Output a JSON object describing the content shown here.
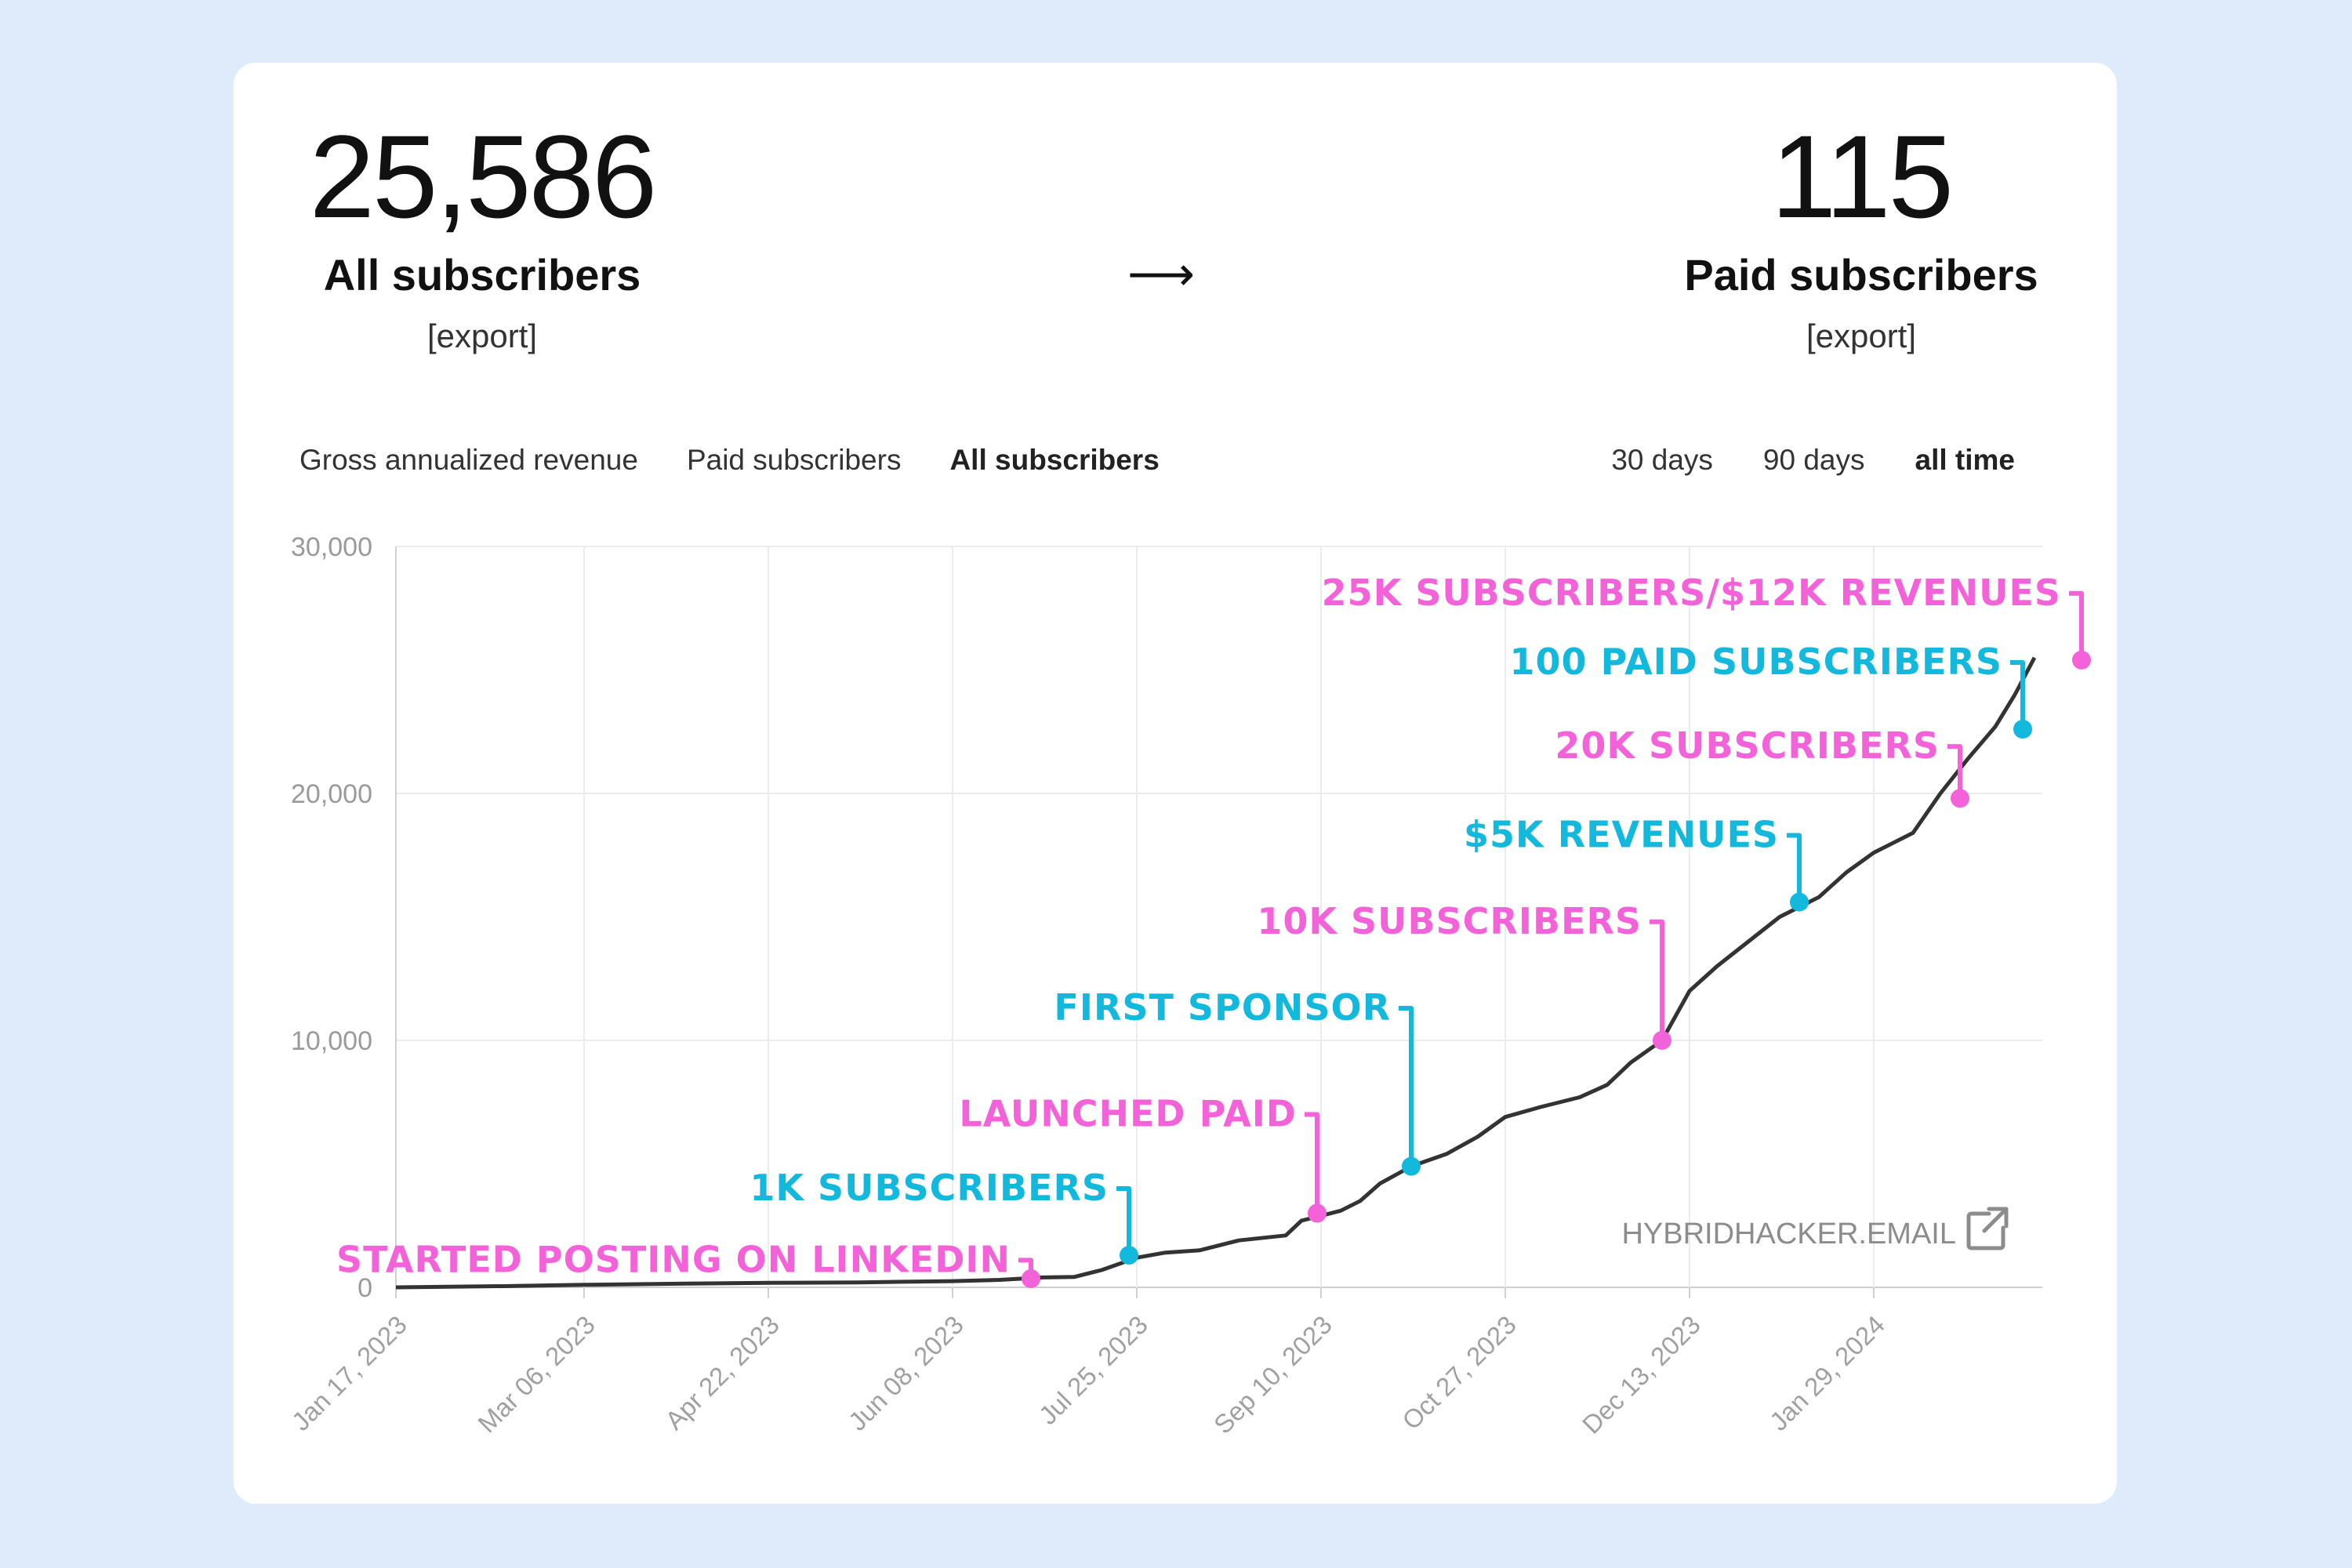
{
  "stats": {
    "all": {
      "value": "25,586",
      "label": "All subscribers",
      "export_label": "[export]"
    },
    "arrow": "⟶",
    "paid": {
      "value": "115",
      "label": "Paid subscribers",
      "export_label": "[export]"
    }
  },
  "tabs": [
    {
      "label": "Gross annualized revenue",
      "active": false
    },
    {
      "label": "Paid subscribers",
      "active": false
    },
    {
      "label": "All subscribers",
      "active": true
    }
  ],
  "ranges": [
    {
      "label": "30 days",
      "active": false
    },
    {
      "label": "90 days",
      "active": false
    },
    {
      "label": "all time",
      "active": true
    }
  ],
  "watermark": {
    "text": "HYBRIDHACKER.EMAIL",
    "icon": "external-link-icon"
  },
  "colors": {
    "pink": "#f462d9",
    "blue": "#13b8dd",
    "line": "#333333"
  },
  "chart_data": {
    "type": "line",
    "title": "",
    "xlabel": "",
    "ylabel": "",
    "x_start": "2023-01-17",
    "x_end": "2024-03-10",
    "ylim": [
      0,
      30000
    ],
    "yticks": [
      0,
      10000,
      20000,
      30000
    ],
    "ytick_labels": [
      "0",
      "10,000",
      "20,000",
      "30,000"
    ],
    "xticks": [
      "2023-01-17",
      "2023-03-06",
      "2023-04-22",
      "2023-06-08",
      "2023-07-25",
      "2023-09-10",
      "2023-10-27",
      "2023-12-13",
      "2024-01-29"
    ],
    "xtick_labels": [
      "Jan 17, 2023",
      "Mar 06, 2023",
      "Apr 22, 2023",
      "Jun 08, 2023",
      "Jul 25, 2023",
      "Sep 10, 2023",
      "Oct 27, 2023",
      "Dec 13, 2023",
      "Jan 29, 2024"
    ],
    "grid": true,
    "series": [
      {
        "values": [
          [
            "2023-01-17",
            0
          ],
          [
            "2023-02-15",
            50
          ],
          [
            "2023-03-06",
            100
          ],
          [
            "2023-04-01",
            150
          ],
          [
            "2023-04-22",
            180
          ],
          [
            "2023-05-15",
            200
          ],
          [
            "2023-06-08",
            250
          ],
          [
            "2023-06-20",
            300
          ],
          [
            "2023-07-01",
            400
          ],
          [
            "2023-07-09",
            420
          ],
          [
            "2023-07-16",
            700
          ],
          [
            "2023-07-25",
            1200
          ],
          [
            "2023-08-01",
            1400
          ],
          [
            "2023-08-10",
            1500
          ],
          [
            "2023-08-20",
            1900
          ],
          [
            "2023-09-01",
            2100
          ],
          [
            "2023-09-05",
            2700
          ],
          [
            "2023-09-10",
            2900
          ],
          [
            "2023-09-15",
            3100
          ],
          [
            "2023-09-20",
            3500
          ],
          [
            "2023-09-25",
            4200
          ],
          [
            "2023-10-03",
            4900
          ],
          [
            "2023-10-12",
            5400
          ],
          [
            "2023-10-20",
            6100
          ],
          [
            "2023-10-27",
            6900
          ],
          [
            "2023-11-05",
            7300
          ],
          [
            "2023-11-15",
            7700
          ],
          [
            "2023-11-22",
            8200
          ],
          [
            "2023-11-28",
            9100
          ],
          [
            "2023-12-06",
            10000
          ],
          [
            "2023-12-13",
            12000
          ],
          [
            "2023-12-20",
            13000
          ],
          [
            "2023-12-28",
            14000
          ],
          [
            "2024-01-05",
            15000
          ],
          [
            "2024-01-15",
            15800
          ],
          [
            "2024-01-22",
            16800
          ],
          [
            "2024-01-29",
            17600
          ],
          [
            "2024-02-08",
            18400
          ],
          [
            "2024-02-15",
            20000
          ],
          [
            "2024-02-22",
            21400
          ],
          [
            "2024-02-29",
            22700
          ],
          [
            "2024-03-05",
            24000
          ],
          [
            "2024-03-10",
            25500
          ]
        ]
      }
    ],
    "annotations": [
      {
        "text": "STARTED POSTING ON LINKEDIN",
        "x": "2023-06-28",
        "y": 350,
        "color": "pink",
        "label_y": 1100
      },
      {
        "text": "1K SUBSCRIBERS",
        "x": "2023-07-23",
        "y": 1300,
        "color": "blue",
        "label_y": 4000
      },
      {
        "text": "LAUNCHED PAID",
        "x": "2023-09-09",
        "y": 3000,
        "color": "pink",
        "label_y": 7000
      },
      {
        "text": "FIRST SPONSOR",
        "x": "2023-10-03",
        "y": 4900,
        "color": "blue",
        "label_y": 11300
      },
      {
        "text": "10K SUBSCRIBERS",
        "x": "2023-12-06",
        "y": 10000,
        "color": "pink",
        "label_y": 14800
      },
      {
        "text": "$5K REVENUES",
        "x": "2024-01-10",
        "y": 15600,
        "color": "blue",
        "label_y": 18300
      },
      {
        "text": "20K SUBSCRIBERS",
        "x": "2024-02-20",
        "y": 19800,
        "color": "pink",
        "label_y": 21900
      },
      {
        "text": "100 PAID SUBSCRIBERS",
        "x": "2024-03-07",
        "y": 22600,
        "color": "blue",
        "label_y": 25300
      },
      {
        "text": "25K SUBSCRIBERS/$12K REVENUES",
        "x": "2024-03-22",
        "y": 25400,
        "color": "pink",
        "label_y": 28100
      }
    ]
  }
}
